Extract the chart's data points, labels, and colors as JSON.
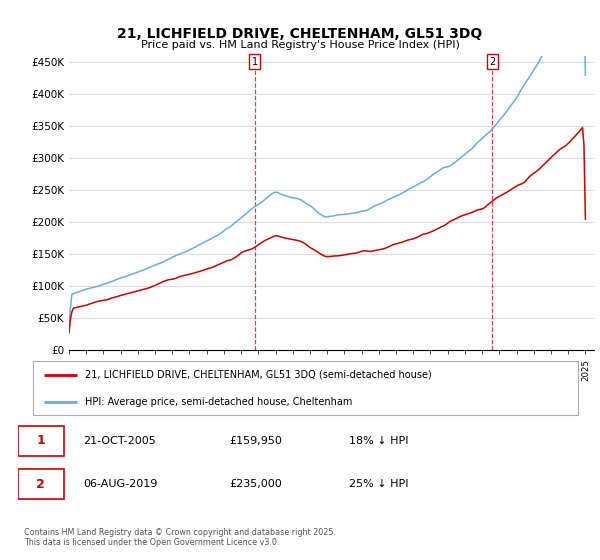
{
  "title": "21, LICHFIELD DRIVE, CHELTENHAM, GL51 3DQ",
  "subtitle": "Price paid vs. HM Land Registry's House Price Index (HPI)",
  "ylabel_values": [
    "£0",
    "£50K",
    "£100K",
    "£150K",
    "£200K",
    "£250K",
    "£300K",
    "£350K",
    "£400K",
    "£450K"
  ],
  "ylim": [
    0,
    460000
  ],
  "yticks": [
    0,
    50000,
    100000,
    150000,
    200000,
    250000,
    300000,
    350000,
    400000,
    450000
  ],
  "x_start_year": 1995,
  "x_end_year": 2025,
  "vline1_year": 2005.8,
  "vline2_year": 2019.6,
  "hpi_color": "#6baed6",
  "price_color": "#cc0000",
  "bg_color": "#ffffff",
  "grid_color": "#dddddd",
  "legend_entry1": "21, LICHFIELD DRIVE, CHELTENHAM, GL51 3DQ (semi-detached house)",
  "legend_entry2": "HPI: Average price, semi-detached house, Cheltenham",
  "annotation1_date": "21-OCT-2005",
  "annotation1_price": "£159,950",
  "annotation1_hpi": "18% ↓ HPI",
  "annotation2_date": "06-AUG-2019",
  "annotation2_price": "£235,000",
  "annotation2_hpi": "25% ↓ HPI",
  "footer": "Contains HM Land Registry data © Crown copyright and database right 2025.\nThis data is licensed under the Open Government Licence v3.0."
}
